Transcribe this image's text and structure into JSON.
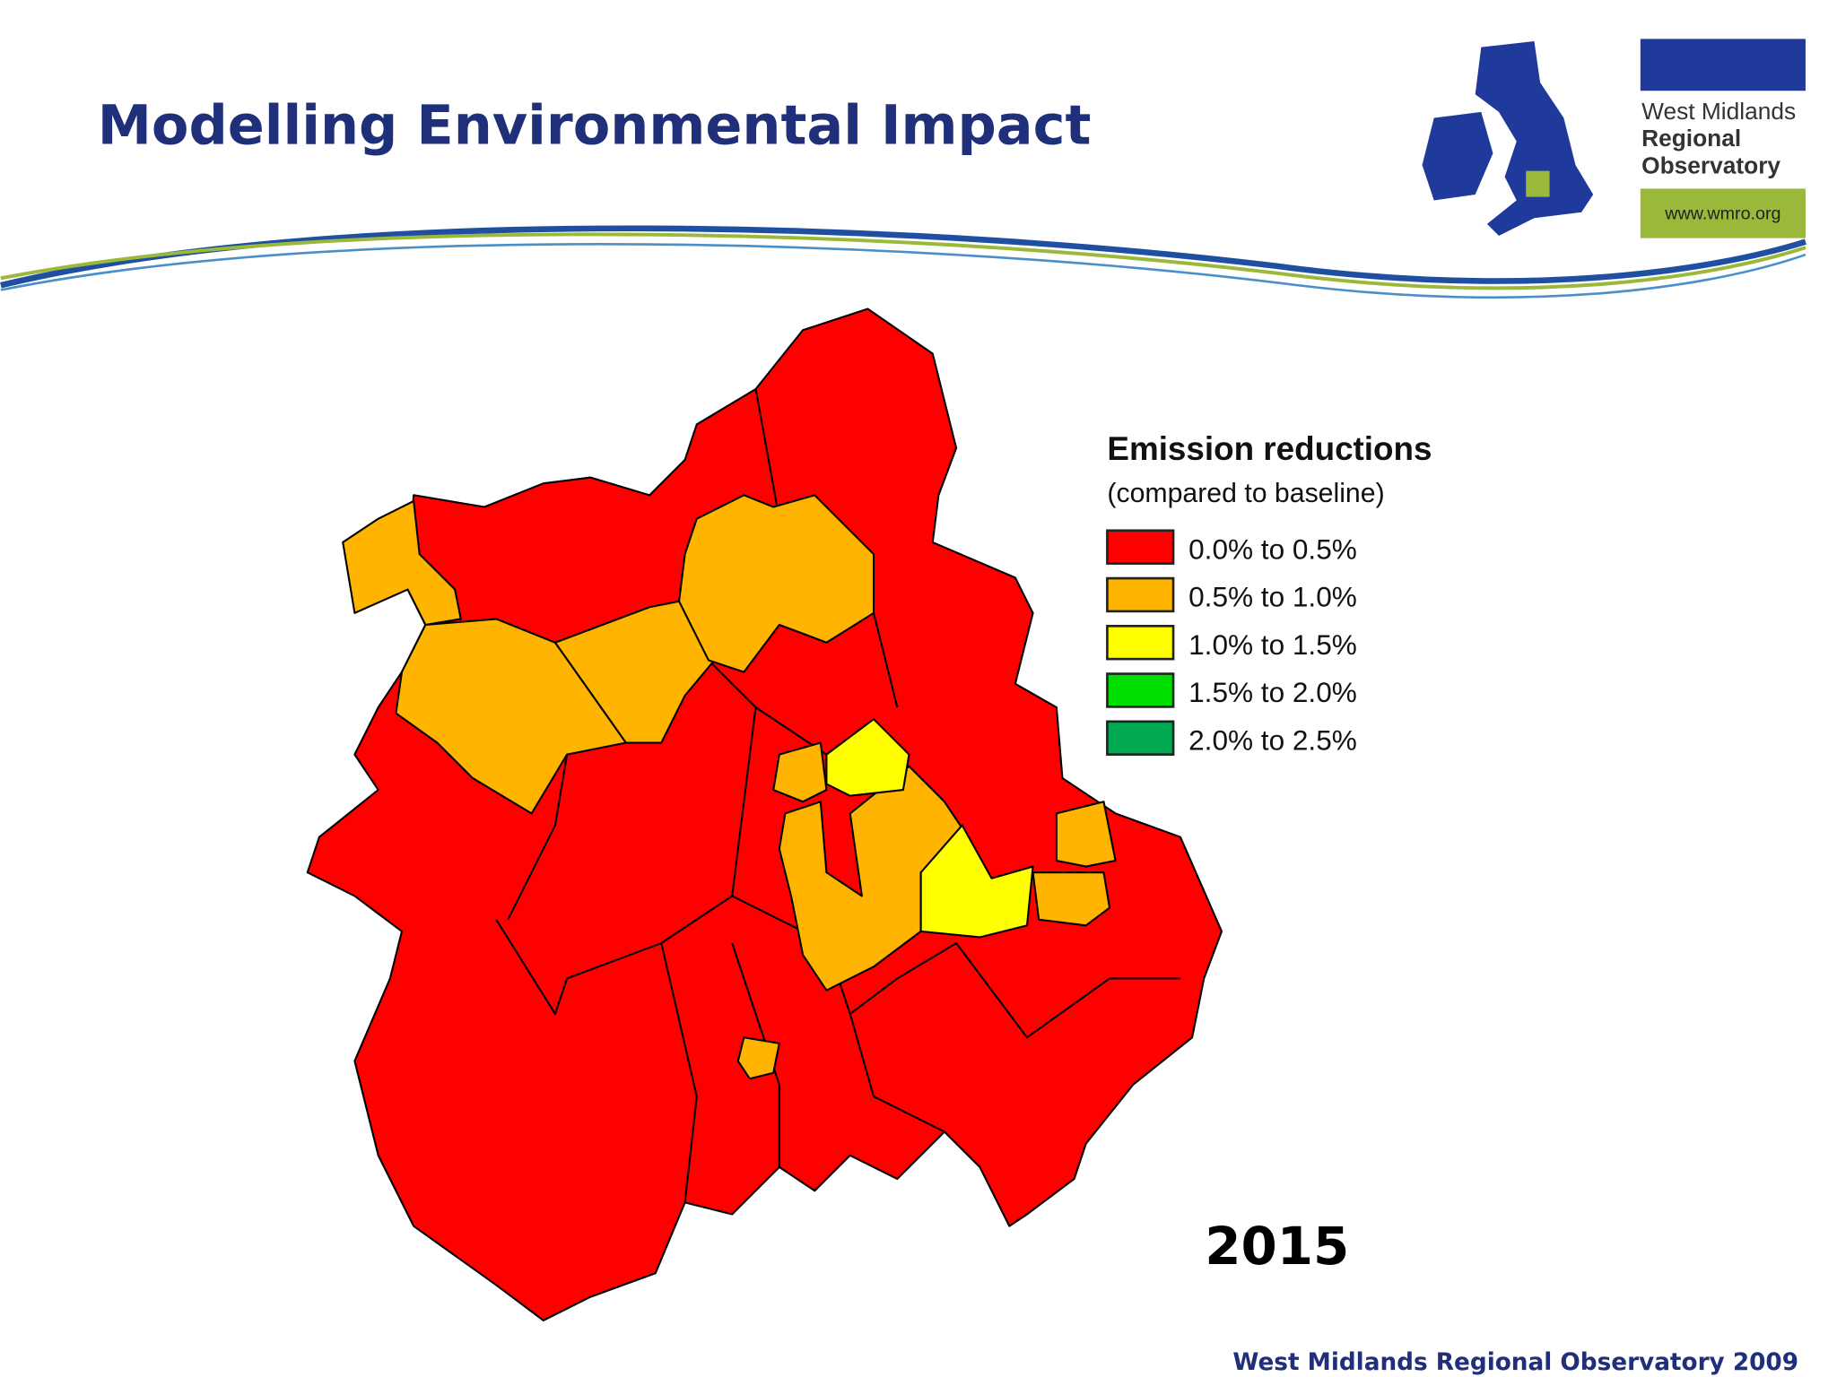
{
  "header": {
    "title": "Modelling Environmental Impact"
  },
  "logo": {
    "lines": [
      "West Midlands",
      "Regional",
      "Observatory"
    ],
    "url": "www.wmro.org"
  },
  "legend": {
    "title": "Emission reductions",
    "subtitle": "(compared to baseline)",
    "items": [
      {
        "label": "0.0% to 0.5%",
        "color": "#ff0000"
      },
      {
        "label": "0.5% to 1.0%",
        "color": "#ffb400"
      },
      {
        "label": "1.0% to 1.5%",
        "color": "#ffff00"
      },
      {
        "label": "1.5% to 2.0%",
        "color": "#00e000"
      },
      {
        "label": "2.0% to 2.5%",
        "color": "#00a850"
      }
    ]
  },
  "year": "2015",
  "footer": "West Midlands Regional Observatory 2009"
}
